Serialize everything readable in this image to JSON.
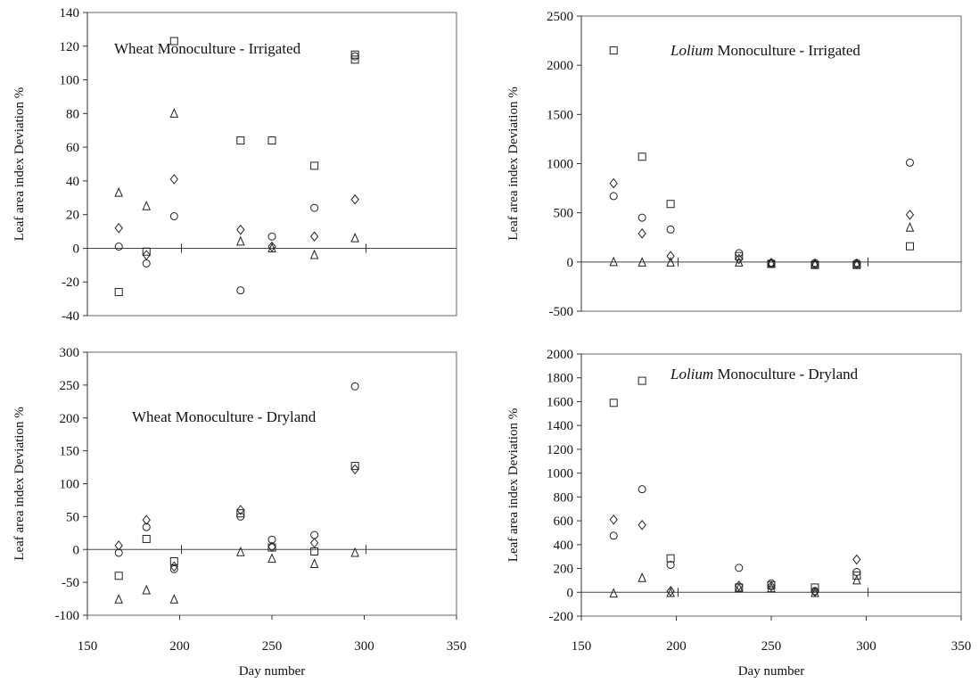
{
  "chart_data": [
    {
      "type": "scatter",
      "title": "Wheat Monoculture - Irrigated",
      "title_italic": "",
      "ylabel": "Leaf area index Deviation %",
      "xlabel": "",
      "xlim": [
        150,
        350
      ],
      "ylim": [
        -40,
        140
      ],
      "xticks": [],
      "yticks": [
        -40,
        -20,
        0,
        20,
        40,
        60,
        80,
        100,
        120,
        140
      ],
      "series": [
        {
          "marker": "square",
          "points": [
            [
              167,
              -26
            ],
            [
              182,
              -2
            ],
            [
              197,
              123
            ],
            [
              233,
              64
            ],
            [
              250,
              64
            ],
            [
              273,
              49
            ],
            [
              295,
              112
            ],
            [
              295,
              115
            ]
          ]
        },
        {
          "marker": "circle",
          "points": [
            [
              167,
              1
            ],
            [
              182,
              -9
            ],
            [
              197,
              19
            ],
            [
              233,
              -25
            ],
            [
              250,
              7
            ],
            [
              273,
              24
            ],
            [
              295,
              114
            ]
          ]
        },
        {
          "marker": "diamond",
          "points": [
            [
              167,
              12
            ],
            [
              182,
              -4
            ],
            [
              197,
              41
            ],
            [
              233,
              11
            ],
            [
              250,
              1
            ],
            [
              273,
              7
            ],
            [
              295,
              29
            ]
          ]
        },
        {
          "marker": "triangle",
          "points": [
            [
              167,
              33
            ],
            [
              182,
              25
            ],
            [
              197,
              80
            ],
            [
              233,
              4
            ],
            [
              250,
              0
            ],
            [
              273,
              -4
            ],
            [
              295,
              6
            ]
          ]
        }
      ]
    },
    {
      "type": "scatter",
      "title": " Monoculture - Irrigated",
      "title_italic": "Lolium",
      "ylabel": "Leaf area index Deviation %",
      "xlabel": "",
      "xlim": [
        150,
        350
      ],
      "ylim": [
        -500,
        2500
      ],
      "xticks": [],
      "yticks": [
        -500,
        0,
        500,
        1000,
        1500,
        2000,
        2500
      ],
      "series": [
        {
          "marker": "square",
          "points": [
            [
              167,
              2150
            ],
            [
              182,
              1070
            ],
            [
              197,
              590
            ],
            [
              233,
              60
            ],
            [
              250,
              -20
            ],
            [
              273,
              -30
            ],
            [
              295,
              -30
            ],
            [
              323,
              160
            ]
          ]
        },
        {
          "marker": "circle",
          "points": [
            [
              167,
              670
            ],
            [
              182,
              450
            ],
            [
              197,
              330
            ],
            [
              233,
              90
            ],
            [
              250,
              -10
            ],
            [
              273,
              -10
            ],
            [
              295,
              -10
            ],
            [
              323,
              1010
            ]
          ]
        },
        {
          "marker": "diamond",
          "points": [
            [
              167,
              800
            ],
            [
              182,
              290
            ],
            [
              197,
              60
            ],
            [
              233,
              30
            ],
            [
              250,
              -10
            ],
            [
              273,
              -20
            ],
            [
              295,
              -20
            ],
            [
              323,
              480
            ]
          ]
        },
        {
          "marker": "triangle",
          "points": [
            [
              167,
              0
            ],
            [
              182,
              -5
            ],
            [
              197,
              -5
            ],
            [
              233,
              -5
            ],
            [
              250,
              -10
            ],
            [
              273,
              -20
            ],
            [
              295,
              -20
            ],
            [
              323,
              350
            ]
          ]
        }
      ]
    },
    {
      "type": "scatter",
      "title": "Wheat Monoculture - Dryland",
      "title_italic": "",
      "ylabel": "Leaf area index Deviation %",
      "xlabel": "Day number",
      "xlim": [
        150,
        350
      ],
      "ylim": [
        -100,
        300
      ],
      "xticks": [
        150,
        200,
        250,
        300,
        350
      ],
      "yticks": [
        -100,
        -50,
        0,
        50,
        100,
        150,
        200,
        250,
        300
      ],
      "series": [
        {
          "marker": "square",
          "points": [
            [
              167,
              -40
            ],
            [
              182,
              16
            ],
            [
              197,
              -18
            ],
            [
              233,
              55
            ],
            [
              250,
              3
            ],
            [
              273,
              -3
            ],
            [
              295,
              127
            ]
          ]
        },
        {
          "marker": "circle",
          "points": [
            [
              167,
              -5
            ],
            [
              182,
              34
            ],
            [
              197,
              -30
            ],
            [
              233,
              50
            ],
            [
              250,
              15
            ],
            [
              273,
              22
            ],
            [
              295,
              248
            ]
          ]
        },
        {
          "marker": "diamond",
          "points": [
            [
              167,
              6
            ],
            [
              182,
              45
            ],
            [
              197,
              -26
            ],
            [
              233,
              60
            ],
            [
              250,
              4
            ],
            [
              273,
              10
            ],
            [
              295,
              122
            ]
          ]
        },
        {
          "marker": "triangle",
          "points": [
            [
              167,
              -76
            ],
            [
              182,
              -62
            ],
            [
              197,
              -76
            ],
            [
              233,
              -4
            ],
            [
              250,
              -14
            ],
            [
              273,
              -22
            ],
            [
              295,
              -5
            ]
          ]
        }
      ]
    },
    {
      "type": "scatter",
      "title": " Monoculture - Dryland",
      "title_italic": "Lolium",
      "ylabel": "Leaf area index Deviation %",
      "xlabel": "Day number",
      "xlim": [
        150,
        350
      ],
      "ylim": [
        -200,
        2000
      ],
      "xticks": [
        150,
        200,
        250,
        300,
        350
      ],
      "yticks": [
        -200,
        0,
        200,
        400,
        600,
        800,
        1000,
        1200,
        1400,
        1600,
        1800,
        2000
      ],
      "series": [
        {
          "marker": "square",
          "points": [
            [
              167,
              1590
            ],
            [
              182,
              1775
            ],
            [
              197,
              285
            ],
            [
              233,
              40
            ],
            [
              250,
              60
            ],
            [
              273,
              40
            ],
            [
              295,
              140
            ]
          ]
        },
        {
          "marker": "circle",
          "points": [
            [
              167,
              475
            ],
            [
              182,
              865
            ],
            [
              197,
              230
            ],
            [
              233,
              205
            ],
            [
              250,
              75
            ],
            [
              273,
              10
            ],
            [
              295,
              170
            ]
          ]
        },
        {
          "marker": "diamond",
          "points": [
            [
              167,
              610
            ],
            [
              182,
              565
            ],
            [
              197,
              10
            ],
            [
              233,
              55
            ],
            [
              250,
              50
            ],
            [
              273,
              5
            ],
            [
              295,
              275
            ]
          ]
        },
        {
          "marker": "triangle",
          "points": [
            [
              167,
              -10
            ],
            [
              182,
              120
            ],
            [
              197,
              -5
            ],
            [
              233,
              35
            ],
            [
              250,
              35
            ],
            [
              273,
              -5
            ],
            [
              295,
              100
            ]
          ]
        }
      ]
    }
  ]
}
